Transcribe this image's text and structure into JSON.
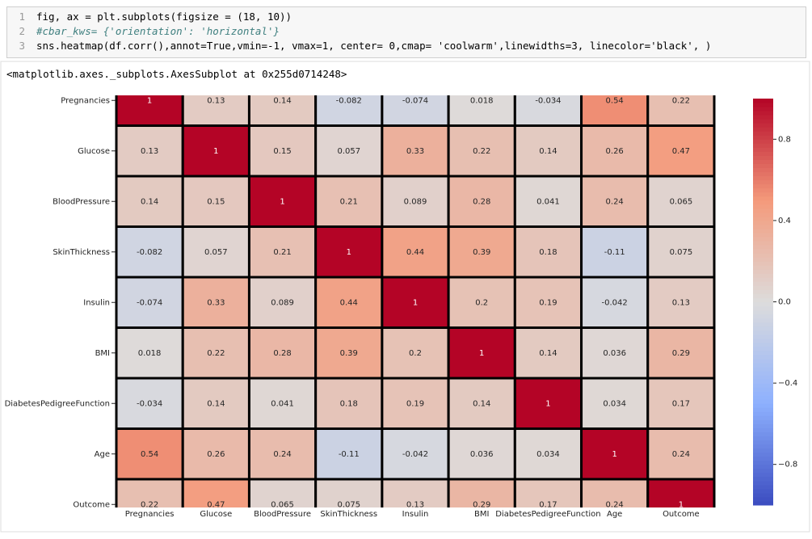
{
  "code": {
    "line_numbers": [
      "1",
      "2",
      "3"
    ],
    "lines": [
      "fig, ax = plt.subplots(figsize = (18, 10))",
      "#cbar_kws= {'orientation': 'horizontal'}",
      "sns.heatmap(df.corr(),annot=True,vmin=-1, vmax=1, center= 0,cmap= 'coolwarm',linewidths=3, linecolor='black', )"
    ]
  },
  "output": "<matplotlib.axes._subplots.AxesSubplot at 0x255d0714248>",
  "chart_data": {
    "type": "heatmap",
    "colormap": "coolwarm",
    "clim": [
      -1,
      1
    ],
    "linecolor": "#000000",
    "rows": [
      "Pregnancies",
      "Glucose",
      "BloodPressure",
      "SkinThickness",
      "Insulin",
      "BMI",
      "DiabetesPedigreeFunction",
      "Age",
      "Outcome"
    ],
    "columns": [
      "Pregnancies",
      "Glucose",
      "BloodPressure",
      "SkinThickness",
      "Insulin",
      "BMI",
      "DiabetesPedigreeFunction",
      "Age",
      "Outcome"
    ],
    "values": [
      [
        1,
        0.13,
        0.14,
        -0.082,
        -0.074,
        0.018,
        -0.034,
        0.54,
        0.22
      ],
      [
        0.13,
        1,
        0.15,
        0.057,
        0.33,
        0.22,
        0.14,
        0.26,
        0.47
      ],
      [
        0.14,
        0.15,
        1,
        0.21,
        0.089,
        0.28,
        0.041,
        0.24,
        0.065
      ],
      [
        -0.082,
        0.057,
        0.21,
        1,
        0.44,
        0.39,
        0.18,
        -0.11,
        0.075
      ],
      [
        -0.074,
        0.33,
        0.089,
        0.44,
        1,
        0.2,
        0.19,
        -0.042,
        0.13
      ],
      [
        0.018,
        0.22,
        0.28,
        0.39,
        0.2,
        1,
        0.14,
        0.036,
        0.29
      ],
      [
        -0.034,
        0.14,
        0.041,
        0.18,
        0.19,
        0.14,
        1,
        0.034,
        0.17
      ],
      [
        0.54,
        0.26,
        0.24,
        -0.11,
        -0.042,
        0.036,
        0.034,
        1,
        0.24
      ],
      [
        0.22,
        0.47,
        0.065,
        0.075,
        0.13,
        0.29,
        0.17,
        0.24,
        1
      ]
    ],
    "cbar_ticks": [
      0.8,
      0.4,
      {
        "value": 0,
        "label": "0.0"
      },
      {
        "value": -0.4,
        "label": "−0.4"
      },
      {
        "value": -0.8,
        "label": "−0.8"
      }
    ]
  }
}
